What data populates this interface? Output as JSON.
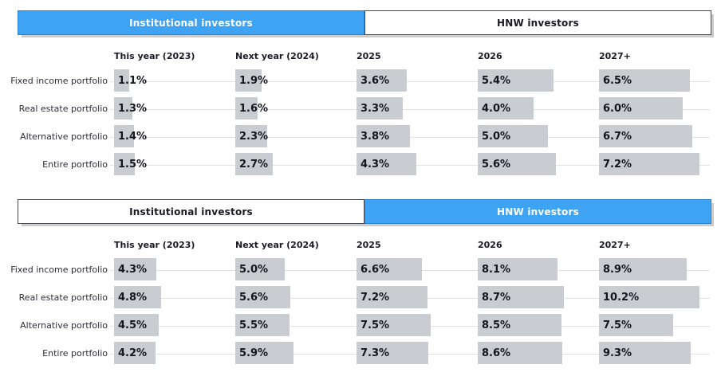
{
  "colors": {
    "accent_blue": "#3EA3F3",
    "accent_blue_border": "#2B84D4",
    "tab_border_dark": "#4A4A55",
    "bar_fill": "#C9CCD1",
    "gridline": "#E2E2E2",
    "text_dark": "#1A1A24",
    "text_white": "#FFFFFF"
  },
  "sections": [
    {
      "name": "institutional",
      "tabs": [
        {
          "label": "Institutional investors",
          "active": true
        },
        {
          "label": "HNW investors",
          "active": false
        }
      ]
    },
    {
      "name": "hnw",
      "tabs": [
        {
          "label": "Institutional investors",
          "active": false
        },
        {
          "label": "HNW investors",
          "active": true
        }
      ]
    }
  ],
  "chart_data": [
    {
      "type": "bar",
      "orientation": "horizontal",
      "title": "Institutional investors",
      "unit": "%",
      "legend_position": "none",
      "grid": "faint-row-lines",
      "categories": [
        "This year (2023)",
        "Next year (2024)",
        "2025",
        "2026",
        "2027+"
      ],
      "series": [
        {
          "name": "Fixed income portfolio",
          "values": [
            1.1,
            1.9,
            3.6,
            5.4,
            6.5
          ]
        },
        {
          "name": "Real estate portfolio",
          "values": [
            1.3,
            1.6,
            3.3,
            4.0,
            6.0
          ]
        },
        {
          "name": "Alternative portfolio",
          "values": [
            1.4,
            2.3,
            3.8,
            5.0,
            6.7
          ]
        },
        {
          "name": "Entire portfolio",
          "values": [
            1.5,
            2.7,
            4.3,
            5.6,
            7.2
          ]
        }
      ]
    },
    {
      "type": "bar",
      "orientation": "horizontal",
      "title": "HNW investors",
      "unit": "%",
      "legend_position": "none",
      "grid": "faint-row-lines",
      "categories": [
        "This year (2023)",
        "Next year (2024)",
        "2025",
        "2026",
        "2027+"
      ],
      "series": [
        {
          "name": "Fixed income portfolio",
          "values": [
            4.3,
            5.0,
            6.6,
            8.1,
            8.9
          ]
        },
        {
          "name": "Real estate portfolio",
          "values": [
            4.8,
            5.6,
            7.2,
            8.7,
            10.2
          ]
        },
        {
          "name": "Alternative portfolio",
          "values": [
            4.5,
            5.5,
            7.5,
            8.5,
            7.5
          ]
        },
        {
          "name": "Entire portfolio",
          "values": [
            4.2,
            5.9,
            7.3,
            8.6,
            9.3
          ]
        }
      ]
    }
  ]
}
